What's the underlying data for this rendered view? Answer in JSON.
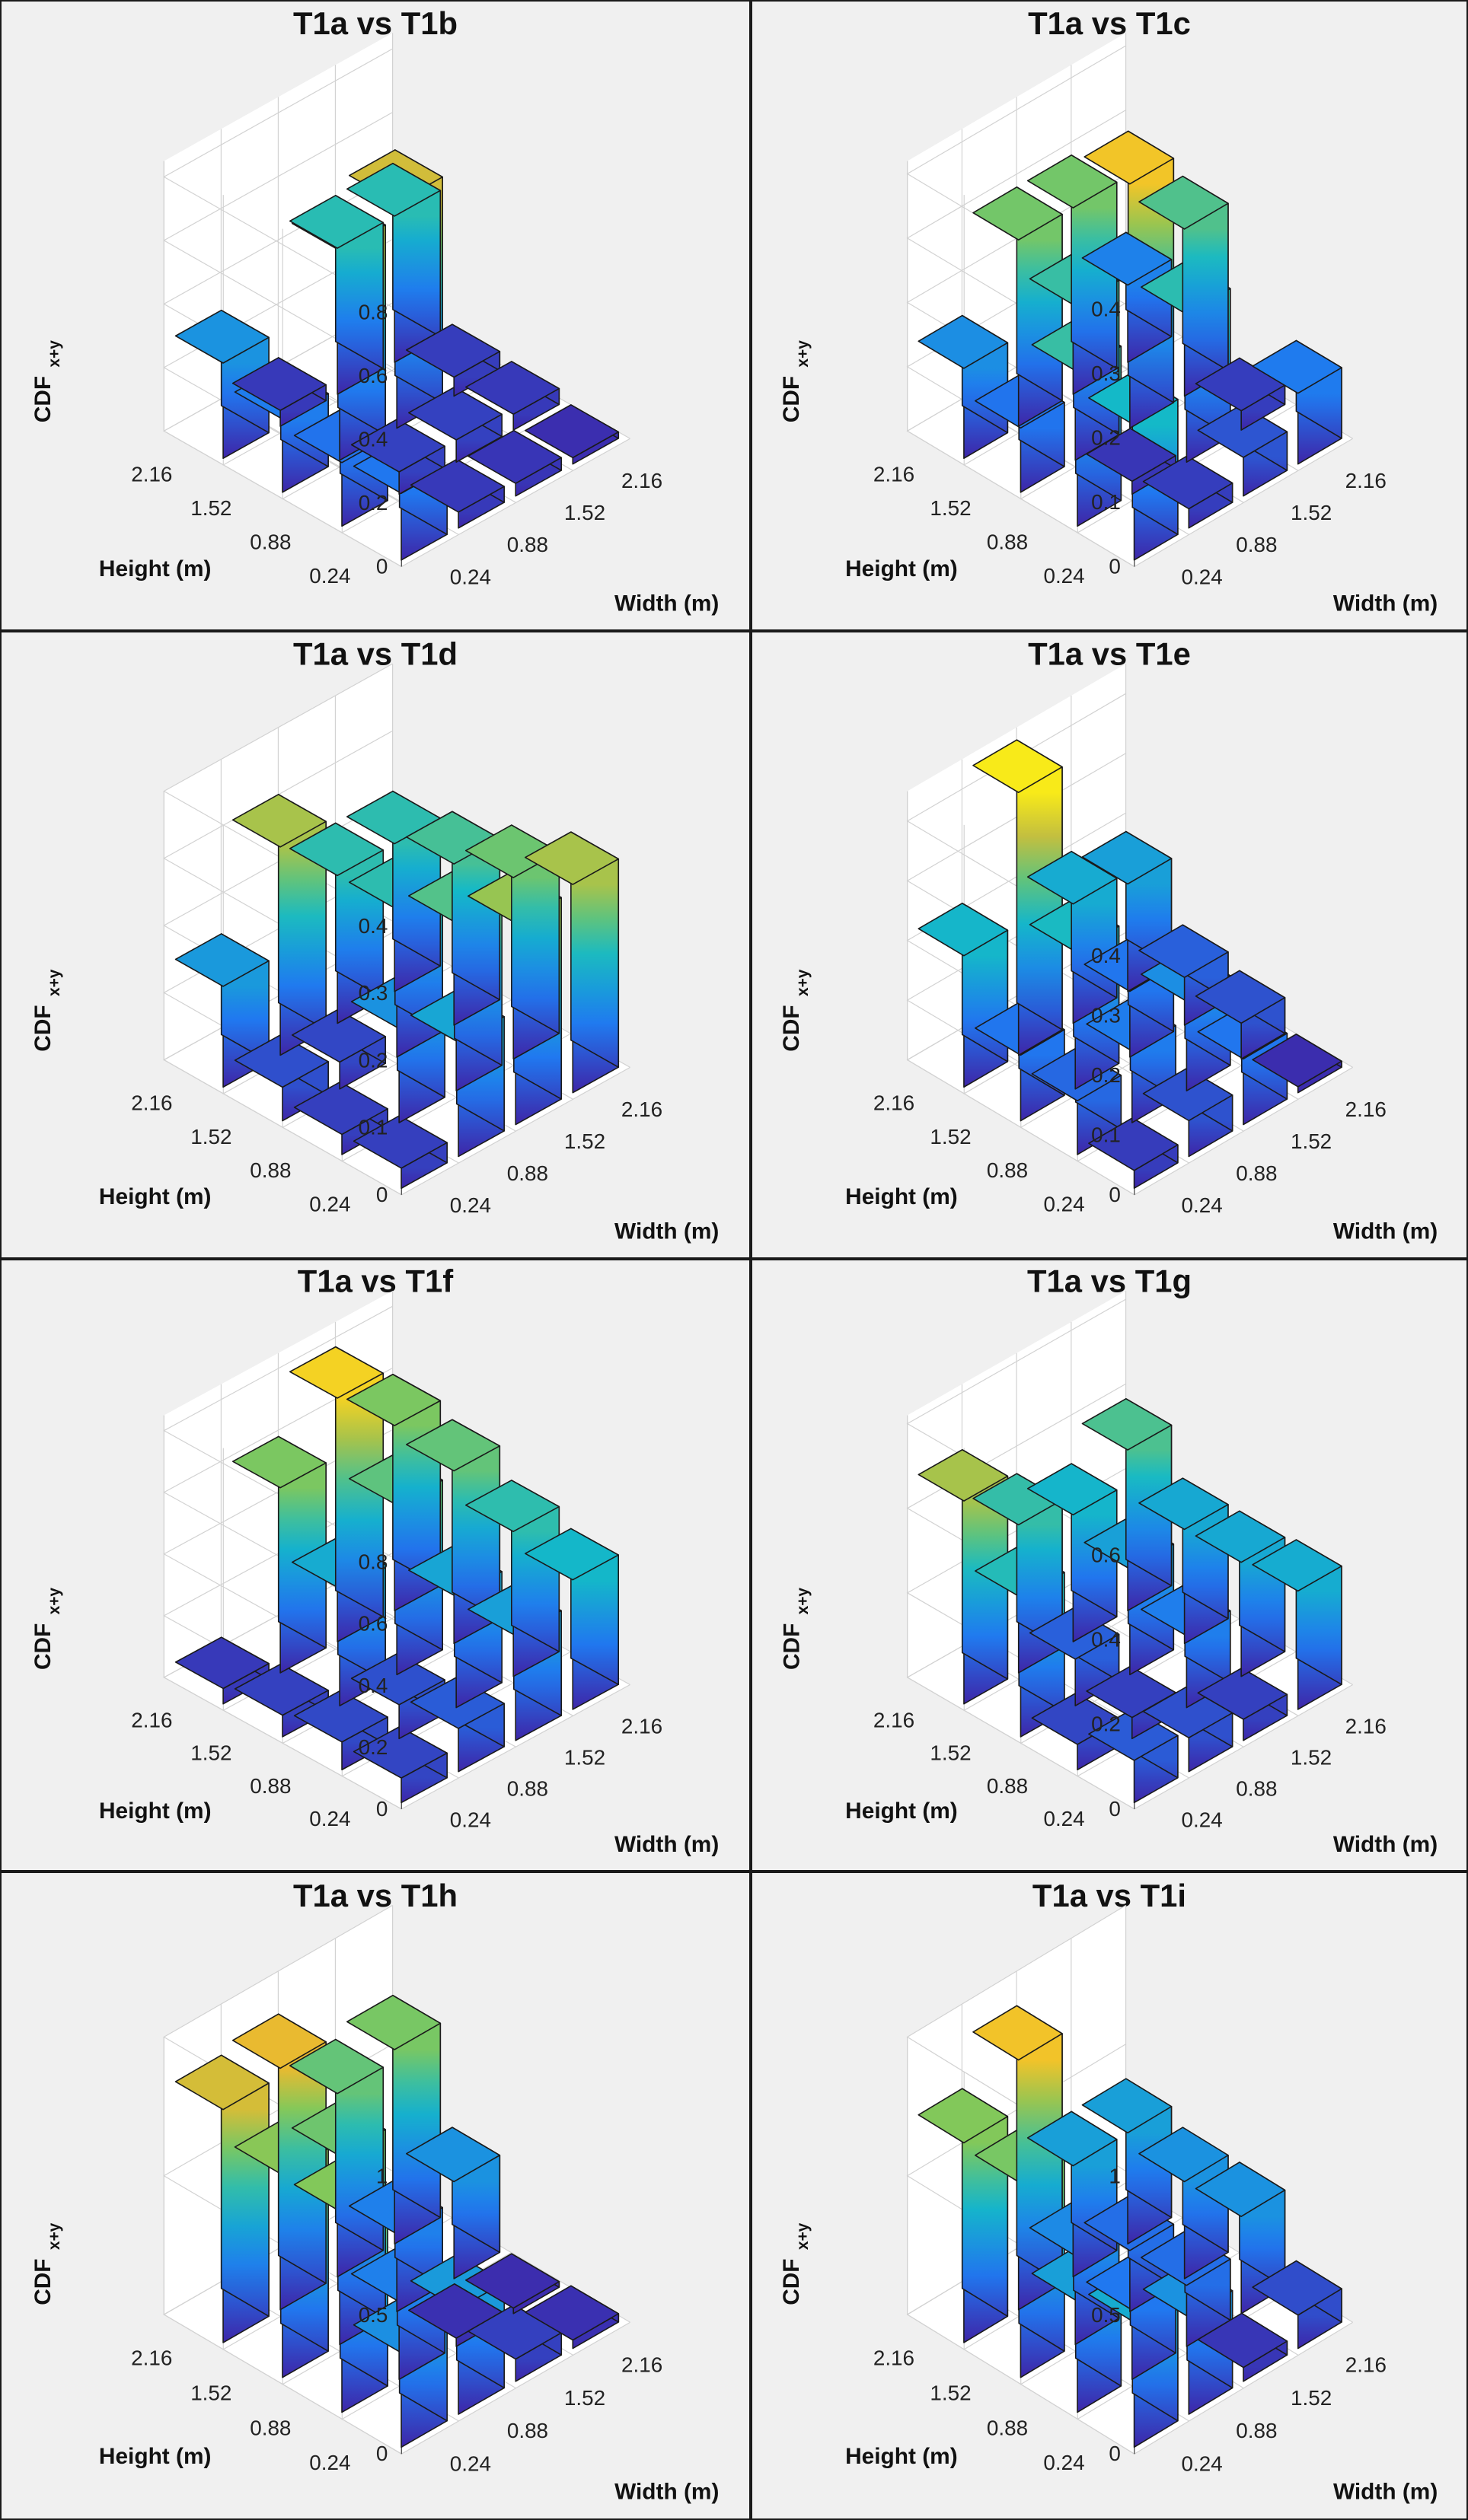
{
  "chart_data": [
    {
      "type": "bar3d",
      "title": "T1a vs T1b",
      "zlabel": "CDF",
      "zlabel_subscript": "x+y",
      "xlabel": "Width (m)",
      "ylabel": "Height (m)",
      "width_ticks": [
        "0.24",
        "0.88",
        "1.52",
        "2.16"
      ],
      "height_ticks": [
        "0.24",
        "0.88",
        "1.52",
        "2.16"
      ],
      "zticks": [
        "0",
        "0.2",
        "0.4",
        "0.6",
        "0.8"
      ],
      "zlim": [
        0,
        0.85
      ],
      "values": [
        [
          0.21,
          0.05,
          0.04,
          0.02
        ],
        [
          0.2,
          0.07,
          0.07,
          0.05
        ],
        [
          0.23,
          0.66,
          0.71,
          0.06
        ],
        [
          0.3,
          0.05,
          0.46,
          0.46
        ]
      ]
    },
    {
      "type": "bar3d",
      "title": "T1a vs T1c",
      "zlabel": "CDF",
      "zlabel_subscript": "x+y",
      "xlabel": "Width (m)",
      "ylabel": "Height (m)",
      "width_ticks": [
        "0.24",
        "0.88",
        "1.52",
        "2.16"
      ],
      "height_ticks": [
        "0.24",
        "0.88",
        "1.52",
        "2.16"
      ],
      "zticks": [
        "0",
        "0.1",
        "0.2",
        "0.3",
        "0.4"
      ],
      "zlim": [
        0,
        0.42
      ],
      "values": [
        [
          0.21,
          0.03,
          0.06,
          0.11
        ],
        [
          0.24,
          0.02,
          0.23,
          0.03
        ],
        [
          0.1,
          0.24,
          0.38,
          0.26
        ],
        [
          0.14,
          0.29,
          0.29,
          0.12
        ]
      ]
    },
    {
      "type": "bar3d",
      "title": "T1a vs T1d",
      "zlabel": "CDF",
      "zlabel_subscript": "x+y",
      "xlabel": "Width (m)",
      "ylabel": "Height (m)",
      "width_ticks": [
        "0.24",
        "0.88",
        "1.52",
        "2.16"
      ],
      "height_ticks": [
        "0.24",
        "0.88",
        "1.52",
        "2.16"
      ],
      "zticks": [
        "0",
        "0.1",
        "0.2",
        "0.3",
        "0.4"
      ],
      "zlim": [
        0,
        0.4
      ],
      "values": [
        [
          0.03,
          0.17,
          0.3,
          0.31
        ],
        [
          0.03,
          0.14,
          0.25,
          0.27
        ],
        [
          0.05,
          0.04,
          0.22,
          0.24
        ],
        [
          0.15,
          0.31,
          0.22,
          0.22
        ]
      ]
    },
    {
      "type": "bar3d",
      "title": "T1a vs T1e",
      "zlabel": "CDF",
      "zlabel_subscript": "x+y",
      "xlabel": "Width (m)",
      "ylabel": "Height (m)",
      "width_ticks": [
        "0.24",
        "0.88",
        "1.52",
        "2.16"
      ],
      "height_ticks": [
        "0.24",
        "0.88",
        "1.52",
        "2.16"
      ],
      "zticks": [
        "0",
        "0.1",
        "0.2",
        "0.3",
        "0.4"
      ],
      "zlim": [
        0,
        0.45
      ],
      "values": [
        [
          0.03,
          0.06,
          0.11,
          0.01
        ],
        [
          0.09,
          0.12,
          0.15,
          0.06
        ],
        [
          0.11,
          0.23,
          0.11,
          0.08
        ],
        [
          0.22,
          0.44,
          0.2,
          0.18
        ]
      ]
    },
    {
      "type": "bar3d",
      "title": "T1a vs T1f",
      "zlabel": "CDF",
      "zlabel_subscript": "x+y",
      "xlabel": "Width (m)",
      "ylabel": "Height (m)",
      "width_ticks": [
        "0.24",
        "0.88",
        "1.52",
        "2.16"
      ],
      "height_ticks": [
        "0.24",
        "0.88",
        "1.52",
        "2.16"
      ],
      "zticks": [
        "0",
        "0.2",
        "0.4",
        "0.6",
        "0.8"
      ],
      "zlim": [
        0,
        0.85
      ],
      "values": [
        [
          0.08,
          0.14,
          0.34,
          0.42
        ],
        [
          0.09,
          0.11,
          0.36,
          0.47
        ],
        [
          0.07,
          0.38,
          0.55,
          0.56
        ],
        [
          0.05,
          0.6,
          0.79,
          0.6
        ]
      ]
    },
    {
      "type": "bar3d",
      "title": "T1a vs T1g",
      "zlabel": "CDF",
      "zlabel_subscript": "x+y",
      "xlabel": "Width (m)",
      "ylabel": "Height (m)",
      "width_ticks": [
        "0.24",
        "0.88",
        "1.52",
        "2.16"
      ],
      "height_ticks": [
        "0.24",
        "0.88",
        "1.52",
        "2.16"
      ],
      "zticks": [
        "0",
        "0.2",
        "0.4",
        "0.6"
      ],
      "zlim": [
        0,
        0.62
      ],
      "values": [
        [
          0.1,
          0.08,
          0.05,
          0.28
        ],
        [
          0.06,
          0.05,
          0.17,
          0.27
        ],
        [
          0.33,
          0.11,
          0.25,
          0.27
        ],
        [
          0.48,
          0.35,
          0.3,
          0.38
        ]
      ]
    },
    {
      "type": "bar3d",
      "title": "T1a vs T1h",
      "zlabel": "CDF",
      "zlabel_subscript": "x+y",
      "xlabel": "Width (m)",
      "ylabel": "Height (m)",
      "width_ticks": [
        "0.24",
        "0.88",
        "1.52",
        "2.16"
      ],
      "height_ticks": [
        "0.24",
        "0.88",
        "1.52",
        "2.16"
      ],
      "zticks": [
        "0",
        "0.5",
        "1"
      ],
      "zlim": [
        0,
        1
      ],
      "values": [
        [
          0.34,
          0.38,
          0.08,
          0.03
        ],
        [
          0.72,
          0.28,
          0.03,
          0.02
        ],
        [
          0.73,
          0.68,
          0.28,
          0.35
        ],
        [
          0.84,
          0.87,
          0.66,
          0.7
        ]
      ]
    },
    {
      "type": "bar3d",
      "title": "T1a vs T1i",
      "zlabel": "CDF",
      "zlabel_subscript": "x+y",
      "xlabel": "Width (m)",
      "ylabel": "Height (m)",
      "width_ticks": [
        "0.24",
        "0.88",
        "1.52",
        "2.16"
      ],
      "height_ticks": [
        "0.24",
        "0.88",
        "1.52",
        "2.16"
      ],
      "zticks": [
        "0",
        "0.5",
        "1"
      ],
      "zlim": [
        0,
        1
      ],
      "values": [
        [
          0.45,
          0.35,
          0.05,
          0.12
        ],
        [
          0.4,
          0.25,
          0.22,
          0.35
        ],
        [
          0.7,
          0.32,
          0.22,
          0.35
        ],
        [
          0.72,
          0.9,
          0.4,
          0.4
        ]
      ]
    }
  ]
}
